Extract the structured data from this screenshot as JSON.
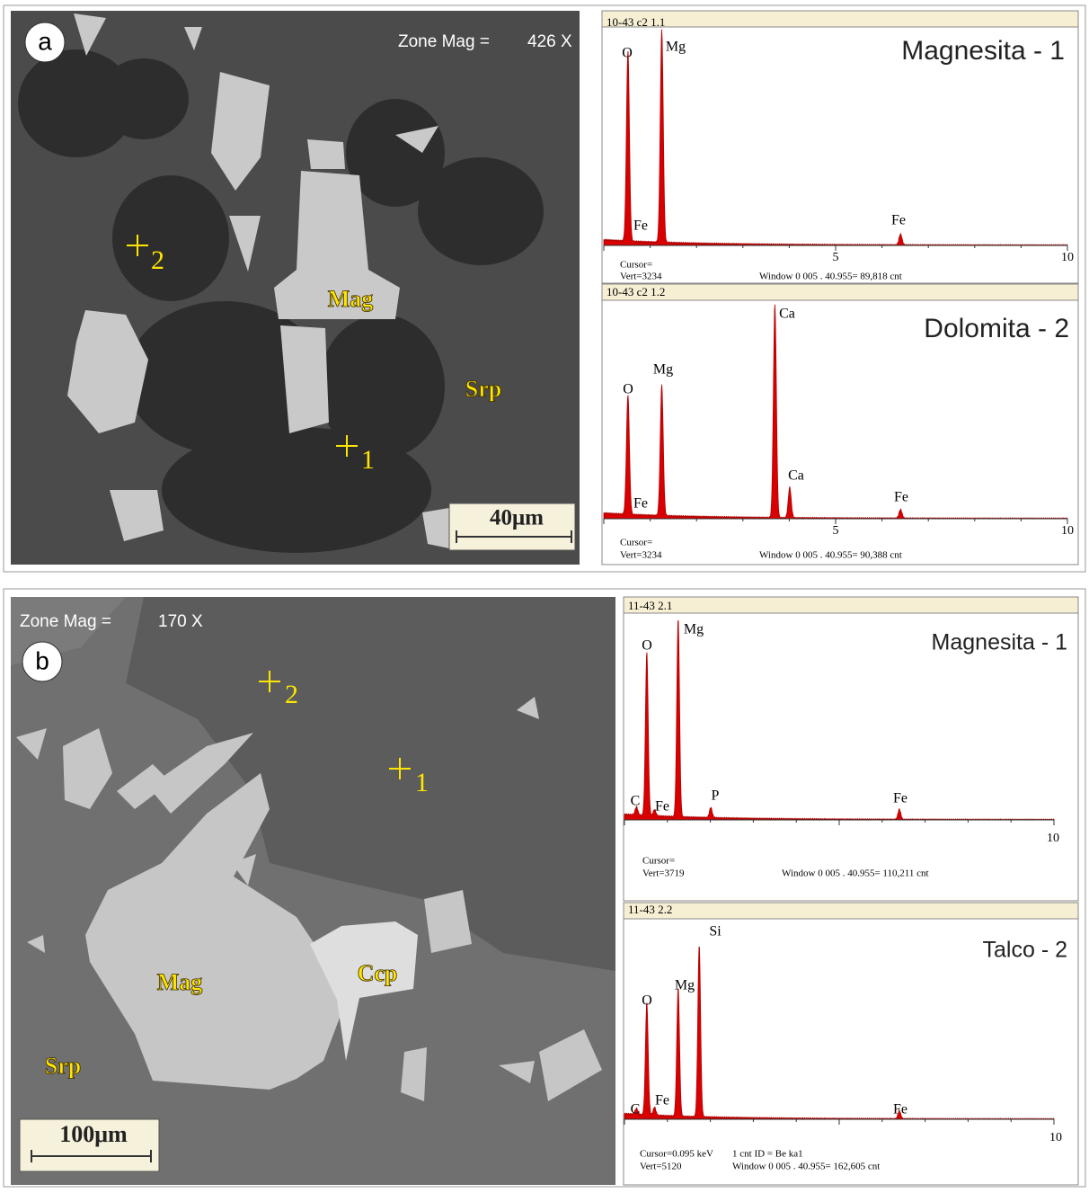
{
  "panels": [
    {
      "label": "a",
      "zone_mag": "Zone Mag =",
      "mag_value": "426 X",
      "scale_bar": "40μm",
      "minerals": [
        "Mag",
        "Srp"
      ],
      "points": [
        "1",
        "2"
      ],
      "spectra": [
        {
          "header": "10-43  c2 1.1",
          "title": "Magnesita - 1",
          "peaks": [
            "O",
            "Mg",
            "Fe",
            "Fe"
          ],
          "axis_ticks": [
            "5",
            "10"
          ],
          "footer": [
            "Cursor=",
            "Vert=3234",
            "Window 0 005 . 40.955= 89,818 cnt"
          ]
        },
        {
          "header": "10-43  c2 1.2",
          "title": "Dolomita - 2",
          "peaks": [
            "O",
            "Mg",
            "Fe",
            "Ca",
            "Ca",
            "Fe"
          ],
          "axis_ticks": [
            "5",
            "10"
          ],
          "footer": [
            "Cursor=",
            "Vert=3234",
            "Window 0 005 . 40.955= 90,388 cnt"
          ]
        }
      ]
    },
    {
      "label": "b",
      "zone_mag": "Zone Mag =",
      "mag_value": "170 X",
      "scale_bar": "100μm",
      "minerals": [
        "Mag",
        "Ccp",
        "Srp"
      ],
      "points": [
        "1",
        "2"
      ],
      "spectra": [
        {
          "header": "11-43  2.1",
          "title": "Magnesita - 1",
          "peaks": [
            "O",
            "Mg",
            "C",
            "Fe",
            "P",
            "Fe"
          ],
          "axis_ticks": [
            "10"
          ],
          "footer": [
            "Cursor=",
            "Vert=3719",
            "Window 0 005 . 40.955= 110,211 cnt"
          ]
        },
        {
          "header": "11-43  2.2",
          "title": "Talco - 2",
          "peaks": [
            "O",
            "Mg",
            "Si",
            "C",
            "Fe",
            "Fe"
          ],
          "axis_ticks": [
            "10"
          ],
          "footer": [
            "Cursor=0.095 keV",
            "1 cnt ID = Be ka1",
            "Vert=5120",
            "Window 0 005 . 40.955= 162,605 cnt"
          ]
        }
      ]
    }
  ]
}
